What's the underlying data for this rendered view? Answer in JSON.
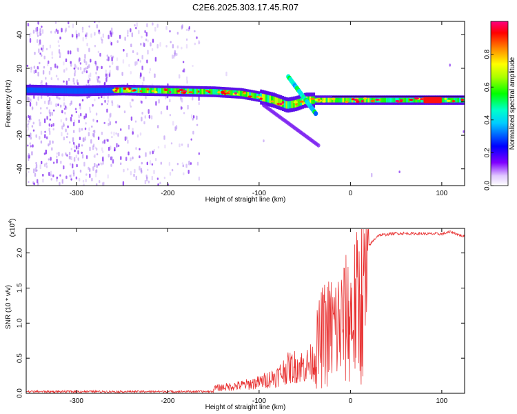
{
  "title": "C2E6.2025.303.17.45.R07",
  "chart_data": [
    {
      "type": "heatmap",
      "name": "spectrogram",
      "xlabel": "Height of straight line (km)",
      "ylabel": "Frequency (Hz)",
      "xlim": [
        -355,
        125
      ],
      "ylim": [
        -50,
        48
      ],
      "xticks": [
        -300,
        -200,
        -100,
        0,
        100
      ],
      "yticks": [
        -40,
        -20,
        0,
        20,
        40
      ],
      "colorbar": {
        "label": "Normalized spectral amplitude",
        "range": [
          0,
          1
        ],
        "ticks": [
          0.0,
          0.2,
          0.4,
          0.6,
          0.8
        ],
        "stops": [
          "#ffffff",
          "#8000ff",
          "#0000ff",
          "#00ffff",
          "#00ff00",
          "#ffff00",
          "#ff8000",
          "#ff0000",
          "#ff0080"
        ]
      },
      "ridge": [
        {
          "x": -350,
          "f": 7
        },
        {
          "x": -300,
          "f": 6.5
        },
        {
          "x": -250,
          "f": 7
        },
        {
          "x": -200,
          "f": 6.5
        },
        {
          "x": -150,
          "f": 6
        },
        {
          "x": -120,
          "f": 5
        },
        {
          "x": -100,
          "f": 3
        },
        {
          "x": -85,
          "f": 1
        },
        {
          "x": -70,
          "f": -2
        },
        {
          "x": -60,
          "f": -1
        },
        {
          "x": -50,
          "f": 1
        },
        {
          "x": -40,
          "f": 1
        },
        {
          "x": -20,
          "f": 1
        },
        {
          "x": 0,
          "f": 1
        },
        {
          "x": 50,
          "f": 1
        },
        {
          "x": 100,
          "f": 1
        },
        {
          "x": 125,
          "f": 1
        }
      ]
    },
    {
      "type": "line",
      "name": "snr",
      "xlabel": "Height of straight line (km)",
      "ylabel": "SNR (10 * v/v)",
      "yscale_label": "(x10",
      "yscale_exp": "4",
      "xlim": [
        -355,
        125
      ],
      "ylim": [
        0,
        2.35
      ],
      "xticks": [
        -300,
        -200,
        -100,
        0,
        100
      ],
      "yticks": [
        0.0,
        0.5,
        1.0,
        1.5,
        2.0
      ],
      "color": "#e83030",
      "envelope": [
        {
          "x": -355,
          "y": 0.02
        },
        {
          "x": -250,
          "y": 0.03
        },
        {
          "x": -200,
          "y": 0.06
        },
        {
          "x": -150,
          "y": 0.1
        },
        {
          "x": -120,
          "y": 0.16
        },
        {
          "x": -100,
          "y": 0.22
        },
        {
          "x": -80,
          "y": 0.35
        },
        {
          "x": -70,
          "y": 0.5
        },
        {
          "x": -60,
          "y": 0.55
        },
        {
          "x": -50,
          "y": 0.55
        },
        {
          "x": -40,
          "y": 0.65
        },
        {
          "x": -35,
          "y": 0.9
        },
        {
          "x": -30,
          "y": 1.1
        },
        {
          "x": -20,
          "y": 1.2
        },
        {
          "x": -10,
          "y": 1.3
        },
        {
          "x": 0,
          "y": 1.45
        },
        {
          "x": 10,
          "y": 1.7
        },
        {
          "x": 20,
          "y": 2.1
        },
        {
          "x": 30,
          "y": 2.25
        },
        {
          "x": 50,
          "y": 2.28
        },
        {
          "x": 100,
          "y": 2.27
        },
        {
          "x": 110,
          "y": 2.3
        },
        {
          "x": 125,
          "y": 2.23
        }
      ]
    }
  ]
}
